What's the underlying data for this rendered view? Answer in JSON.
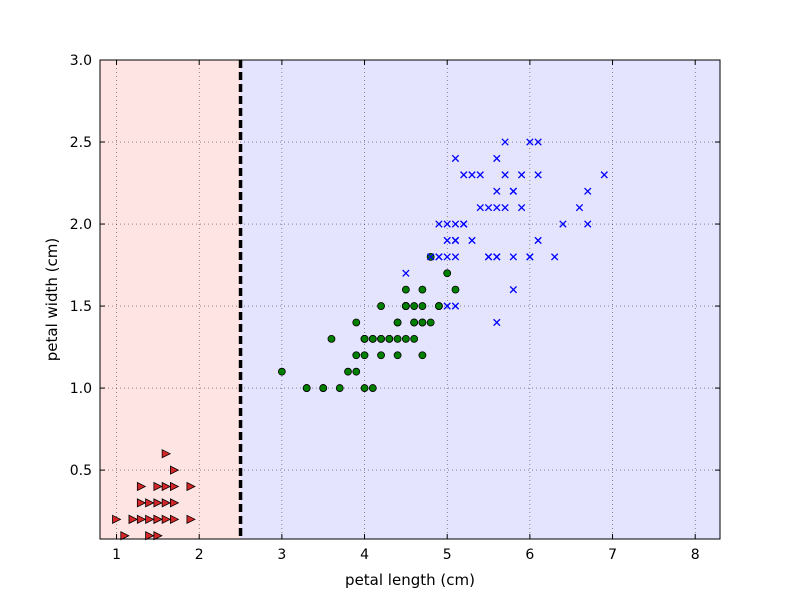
{
  "chart_data": {
    "type": "scatter",
    "title": "",
    "xlabel": "petal length (cm)",
    "ylabel": "petal width (cm)",
    "xlim": [
      0.8,
      8.3
    ],
    "ylim": [
      0.08,
      3.0
    ],
    "xticks": [
      1,
      2,
      3,
      4,
      5,
      6,
      7,
      8
    ],
    "yticks": [
      0.5,
      1.0,
      1.5,
      2.0,
      2.5,
      3.0
    ],
    "xtick_labels": [
      "1",
      "2",
      "3",
      "4",
      "5",
      "6",
      "7",
      "8"
    ],
    "ytick_labels": [
      "0.5",
      "1.0",
      "1.5",
      "2.0",
      "2.5",
      "3.0"
    ],
    "grid": true,
    "decision_boundary_x": 2.5,
    "regions": [
      {
        "x_range": [
          0.8,
          2.5
        ],
        "color": "#ffe4e4"
      },
      {
        "x_range": [
          2.5,
          8.3
        ],
        "color": "#e4e4ff"
      }
    ],
    "series": [
      {
        "marker": "triangle-right",
        "color": "#d62728",
        "points": [
          [
            1.4,
            0.2
          ],
          [
            1.3,
            0.2
          ],
          [
            1.5,
            0.2
          ],
          [
            1.7,
            0.4
          ],
          [
            1.4,
            0.3
          ],
          [
            1.5,
            0.1
          ],
          [
            1.6,
            0.2
          ],
          [
            1.1,
            0.1
          ],
          [
            1.2,
            0.2
          ],
          [
            1.0,
            0.2
          ],
          [
            1.7,
            0.5
          ],
          [
            1.9,
            0.2
          ],
          [
            1.6,
            0.4
          ],
          [
            1.5,
            0.4
          ],
          [
            1.3,
            0.4
          ],
          [
            1.4,
            0.1
          ],
          [
            1.6,
            0.6
          ],
          [
            1.3,
            0.3
          ],
          [
            1.5,
            0.3
          ],
          [
            1.6,
            0.3
          ],
          [
            1.9,
            0.4
          ],
          [
            1.7,
            0.3
          ],
          [
            1.7,
            0.2
          ],
          [
            1.2,
            0.2
          ],
          [
            1.5,
            0.2
          ]
        ]
      },
      {
        "marker": "circle",
        "color": "#008000",
        "points": [
          [
            4.7,
            1.4
          ],
          [
            4.5,
            1.5
          ],
          [
            4.9,
            1.5
          ],
          [
            4.0,
            1.3
          ],
          [
            4.6,
            1.5
          ],
          [
            4.5,
            1.3
          ],
          [
            4.7,
            1.6
          ],
          [
            3.3,
            1.0
          ],
          [
            4.6,
            1.3
          ],
          [
            3.9,
            1.4
          ],
          [
            3.5,
            1.0
          ],
          [
            4.2,
            1.5
          ],
          [
            4.0,
            1.0
          ],
          [
            4.7,
            1.4
          ],
          [
            3.6,
            1.3
          ],
          [
            4.4,
            1.4
          ],
          [
            4.5,
            1.5
          ],
          [
            4.1,
            1.0
          ],
          [
            4.5,
            1.5
          ],
          [
            3.9,
            1.1
          ],
          [
            4.8,
            1.8
          ],
          [
            4.0,
            1.3
          ],
          [
            4.9,
            1.5
          ],
          [
            4.7,
            1.2
          ],
          [
            4.3,
            1.3
          ],
          [
            4.4,
            1.4
          ],
          [
            4.8,
            1.4
          ],
          [
            5.0,
            1.7
          ],
          [
            4.5,
            1.5
          ],
          [
            3.5,
            1.0
          ],
          [
            3.8,
            1.1
          ],
          [
            3.7,
            1.0
          ],
          [
            3.9,
            1.2
          ],
          [
            5.1,
            1.6
          ],
          [
            4.5,
            1.5
          ],
          [
            4.7,
            1.5
          ],
          [
            4.4,
            1.3
          ],
          [
            4.1,
            1.3
          ],
          [
            4.0,
            1.3
          ],
          [
            4.4,
            1.2
          ],
          [
            4.6,
            1.4
          ],
          [
            4.0,
            1.2
          ],
          [
            3.3,
            1.0
          ],
          [
            4.2,
            1.3
          ],
          [
            4.2,
            1.2
          ],
          [
            4.2,
            1.3
          ],
          [
            4.3,
            1.3
          ],
          [
            3.0,
            1.1
          ],
          [
            4.1,
            1.3
          ],
          [
            4.6,
            1.4
          ],
          [
            4.5,
            1.6
          ]
        ]
      },
      {
        "marker": "x",
        "color": "#0000ff",
        "points": [
          [
            6.0,
            2.5
          ],
          [
            5.1,
            1.9
          ],
          [
            5.9,
            2.1
          ],
          [
            5.6,
            1.8
          ],
          [
            5.8,
            2.2
          ],
          [
            6.6,
            2.1
          ],
          [
            4.5,
            1.7
          ],
          [
            6.3,
            1.8
          ],
          [
            5.8,
            1.8
          ],
          [
            6.1,
            2.5
          ],
          [
            5.1,
            2.0
          ],
          [
            5.3,
            1.9
          ],
          [
            5.5,
            2.1
          ],
          [
            5.0,
            2.0
          ],
          [
            5.1,
            2.4
          ],
          [
            5.3,
            2.3
          ],
          [
            5.5,
            1.8
          ],
          [
            6.7,
            2.2
          ],
          [
            6.9,
            2.3
          ],
          [
            5.0,
            1.5
          ],
          [
            5.7,
            2.3
          ],
          [
            4.9,
            2.0
          ],
          [
            6.7,
            2.0
          ],
          [
            4.9,
            1.8
          ],
          [
            5.7,
            2.1
          ],
          [
            6.0,
            1.8
          ],
          [
            4.8,
            1.8
          ],
          [
            4.9,
            1.8
          ],
          [
            5.6,
            2.1
          ],
          [
            5.8,
            1.6
          ],
          [
            6.1,
            1.9
          ],
          [
            6.4,
            2.0
          ],
          [
            5.6,
            2.2
          ],
          [
            5.1,
            1.5
          ],
          [
            5.6,
            1.4
          ],
          [
            6.1,
            2.3
          ],
          [
            5.6,
            2.4
          ],
          [
            5.5,
            1.8
          ],
          [
            5.4,
            2.1
          ],
          [
            5.2,
            2.3
          ],
          [
            5.1,
            1.9
          ],
          [
            5.9,
            2.3
          ],
          [
            5.7,
            2.5
          ],
          [
            5.2,
            2.0
          ],
          [
            5.0,
            1.9
          ],
          [
            5.2,
            2.0
          ],
          [
            5.4,
            2.3
          ],
          [
            5.1,
            1.8
          ],
          [
            5.0,
            1.8
          ],
          [
            6.0,
            1.8
          ],
          [
            5.6,
            1.8
          ],
          [
            5.8,
            2.2
          ]
        ]
      }
    ]
  }
}
